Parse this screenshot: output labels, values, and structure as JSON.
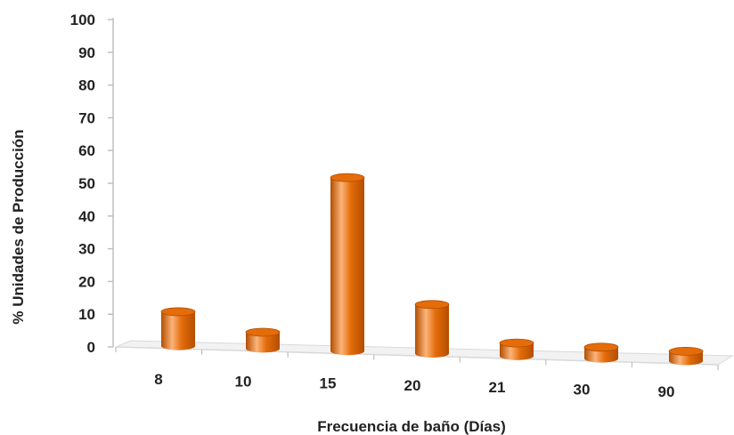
{
  "chart_data": {
    "type": "bar",
    "title": "",
    "xlabel": "Frecuencia de baño  (Días)",
    "ylabel": "%  Unidades de Producción",
    "categories": [
      "8",
      "10",
      "15",
      "20",
      "21",
      "30",
      "90"
    ],
    "values": [
      10.5,
      5,
      53,
      15,
      4,
      3.5,
      3
    ],
    "ylim": [
      0,
      100
    ],
    "yticks": [
      0,
      10,
      20,
      30,
      40,
      50,
      60,
      70,
      80,
      90,
      100
    ],
    "grid": false,
    "legend": "none",
    "style": "3d-cylinder",
    "bar_color": "#e46c0a",
    "bar_highlight": "#fbb47a",
    "bar_shadow": "#b34e00"
  }
}
